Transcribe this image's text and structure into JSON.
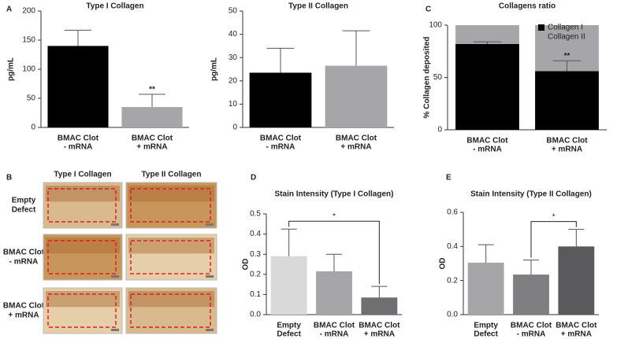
{
  "chart_data": [
    {
      "type": "bar",
      "panel": "A",
      "title": "Type I Collagen",
      "ylabel": "pg/mL",
      "categories": [
        [
          "BMAC Clot",
          "- mRNA"
        ],
        [
          "BMAC Clot",
          "+ mRNA"
        ]
      ],
      "values": [
        140,
        35
      ],
      "errors": [
        27,
        22
      ],
      "colors": [
        "#000000",
        "#a6a6a8"
      ],
      "ylim": [
        0,
        200
      ],
      "yticks": [
        0,
        50,
        100,
        150,
        200
      ],
      "annotation": "**"
    },
    {
      "type": "bar",
      "title": "Type II Collagen",
      "ylabel": "pg/mL",
      "categories": [
        [
          "BMAC Clot",
          "- mRNA"
        ],
        [
          "BMAC Clot",
          "+ mRNA"
        ]
      ],
      "values": [
        23.5,
        26.5
      ],
      "errors": [
        10.5,
        15
      ],
      "colors": [
        "#000000",
        "#a6a6a8"
      ],
      "ylim": [
        0,
        50
      ],
      "yticks": [
        0,
        10,
        20,
        30,
        40,
        50
      ]
    },
    {
      "type": "stacked",
      "panel": "C",
      "title": "Collagens ratio",
      "ylabel": "% Collagen deposited",
      "categories": [
        [
          "BMAC Clot",
          "- mRNA"
        ],
        [
          "BMAC Clot",
          "+ mRNA"
        ]
      ],
      "series": [
        {
          "name": "Collagen I",
          "color": "#000000",
          "values": [
            82,
            56
          ],
          "errors": [
            2,
            10
          ]
        },
        {
          "name": "Collagen II",
          "color": "#a6a6a8",
          "values": [
            18,
            44
          ]
        }
      ],
      "ylim": [
        0,
        100
      ],
      "yticks": [
        0,
        50,
        100
      ],
      "annotation": "**"
    },
    {
      "type": "images",
      "panel": "B",
      "columns": [
        "Type I Collagen",
        "Type II Collagen"
      ],
      "rows": [
        [
          "Empty",
          "Defect"
        ],
        [
          "BMAC Clot",
          "- mRNA"
        ],
        [
          "BMAC Clot",
          "+ mRNA"
        ]
      ]
    },
    {
      "type": "bar",
      "panel": "D",
      "title": "Stain Intensity (Type I Collagen)",
      "ylabel": "OD",
      "categories": [
        [
          "Empty",
          "Defect"
        ],
        [
          "BMAC Clot",
          "- mRNA"
        ],
        [
          "BMAC Clot",
          "+ mRNA"
        ]
      ],
      "values": [
        0.29,
        0.215,
        0.085
      ],
      "errors": [
        0.135,
        0.085,
        0.055
      ],
      "colors": [
        "#d9d9d9",
        "#a6a6a8",
        "#6f6f72"
      ],
      "ylim": [
        0,
        0.5
      ],
      "yticks": [
        {
          "value": 0,
          "label": "0.0"
        },
        0.1,
        0.2,
        0.3,
        0.4,
        0.5
      ],
      "significance": "*"
    },
    {
      "type": "bar",
      "panel": "E",
      "title": "Stain Intensity (Type II Collagen)",
      "ylabel": "OD",
      "categories": [
        [
          "Empty",
          "Defect"
        ],
        [
          "BMAC Clot",
          "- mRNA"
        ],
        [
          "BMAC Clot",
          "+ mRNA"
        ]
      ],
      "values": [
        0.305,
        0.235,
        0.4
      ],
      "errors": [
        0.105,
        0.085,
        0.1
      ],
      "colors": [
        "#a6a6a8",
        "#7f7f82",
        "#5a5a5d"
      ],
      "ylim": [
        0,
        0.6
      ],
      "yticks": [
        {
          "value": 0,
          "label": "0.0"
        },
        0.2,
        0.4,
        0.6
      ],
      "significance": "*"
    }
  ]
}
